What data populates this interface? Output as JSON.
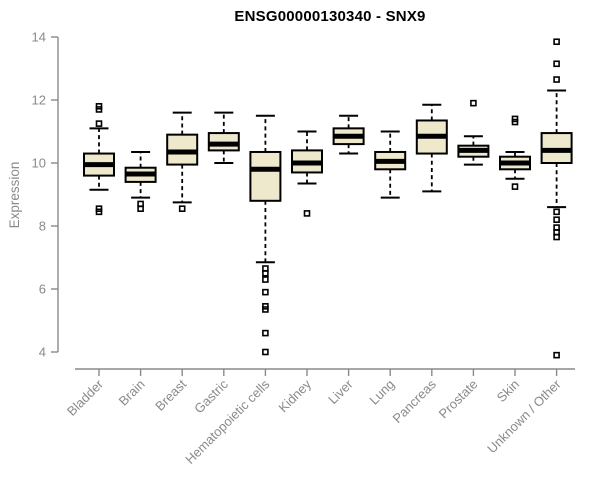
{
  "chart_data": {
    "type": "boxplot",
    "title": "ENSG00000130340 - SNX9",
    "ylabel": "Expression",
    "xlabel": "",
    "ylim": [
      4,
      14
    ],
    "yticks": [
      4,
      6,
      8,
      10,
      12,
      14
    ],
    "grid": false,
    "legend": null,
    "colors": {
      "box_fill": "#EEE8CD",
      "box_border": "#000000",
      "median": "#000000",
      "whisker": "#000000",
      "outlier": "#000000",
      "axis": "#8A8A8A",
      "title": "#000000",
      "background": "#FFFFFF"
    },
    "categories": [
      "Bladder",
      "Brain",
      "Breast",
      "Gastric",
      "Hematopoietic cells",
      "Kidney",
      "Liver",
      "Lung",
      "Pancreas",
      "Prostate",
      "Skin",
      "Unknown / Other"
    ],
    "boxes": [
      {
        "category": "Bladder",
        "whisker_low": 9.15,
        "q1": 9.6,
        "median": 9.95,
        "q3": 10.3,
        "whisker_high": 11.1,
        "outliers": [
          11.8,
          11.7,
          11.25,
          8.55,
          8.45
        ]
      },
      {
        "category": "Brain",
        "whisker_low": 8.9,
        "q1": 9.4,
        "median": 9.65,
        "q3": 9.85,
        "whisker_high": 10.35,
        "outliers": [
          8.7,
          8.55
        ]
      },
      {
        "category": "Breast",
        "whisker_low": 8.75,
        "q1": 9.95,
        "median": 10.35,
        "q3": 10.9,
        "whisker_high": 11.6,
        "outliers": [
          8.55
        ]
      },
      {
        "category": "Gastric",
        "whisker_low": 10.0,
        "q1": 10.4,
        "median": 10.6,
        "q3": 10.95,
        "whisker_high": 11.6,
        "outliers": []
      },
      {
        "category": "Hematopoietic cells",
        "whisker_low": 6.85,
        "q1": 8.8,
        "median": 9.8,
        "q3": 10.35,
        "whisker_high": 11.5,
        "outliers": [
          6.65,
          6.5,
          6.3,
          5.9,
          5.45,
          5.35,
          4.6,
          4.0
        ]
      },
      {
        "category": "Kidney",
        "whisker_low": 9.35,
        "q1": 9.7,
        "median": 10.0,
        "q3": 10.4,
        "whisker_high": 11.0,
        "outliers": [
          8.4
        ]
      },
      {
        "category": "Liver",
        "whisker_low": 10.3,
        "q1": 10.6,
        "median": 10.85,
        "q3": 11.1,
        "whisker_high": 11.5,
        "outliers": []
      },
      {
        "category": "Lung",
        "whisker_low": 8.9,
        "q1": 9.8,
        "median": 10.05,
        "q3": 10.35,
        "whisker_high": 11.0,
        "outliers": []
      },
      {
        "category": "Pancreas",
        "whisker_low": 9.1,
        "q1": 10.3,
        "median": 10.85,
        "q3": 11.35,
        "whisker_high": 11.85,
        "outliers": []
      },
      {
        "category": "Prostate",
        "whisker_low": 9.95,
        "q1": 10.2,
        "median": 10.4,
        "q3": 10.55,
        "whisker_high": 10.85,
        "outliers": [
          11.9
        ]
      },
      {
        "category": "Skin",
        "whisker_low": 9.5,
        "q1": 9.8,
        "median": 10.0,
        "q3": 10.2,
        "whisker_high": 10.35,
        "outliers": [
          11.4,
          11.3,
          9.25
        ]
      },
      {
        "category": "Unknown / Other",
        "whisker_low": 8.6,
        "q1": 10.0,
        "median": 10.4,
        "q3": 10.95,
        "whisker_high": 12.3,
        "outliers": [
          13.85,
          13.15,
          12.65,
          8.45,
          8.2,
          7.95,
          7.8,
          7.65,
          3.9
        ]
      }
    ]
  }
}
